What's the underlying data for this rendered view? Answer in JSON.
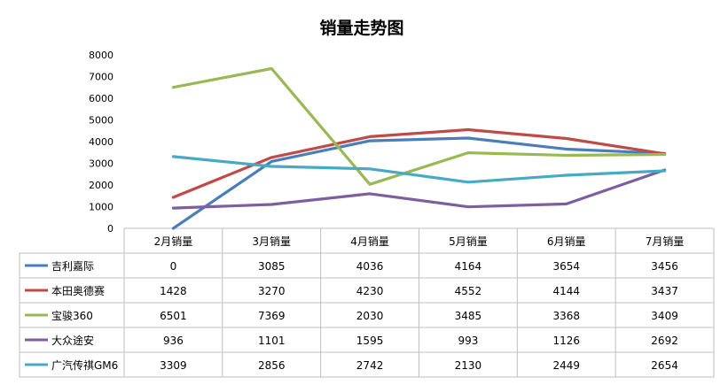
{
  "chart_data": {
    "type": "line",
    "title": "销量走势图",
    "xlabel": "",
    "ylabel": "",
    "ylim": [
      0,
      8000
    ],
    "yticks": [
      "0",
      "1000",
      "2000",
      "3000",
      "4000",
      "5000",
      "6000",
      "7000",
      "8000"
    ],
    "categories": [
      "2月销量",
      "3月销量",
      "4月销量",
      "5月销量",
      "6月销量",
      "7月销量"
    ],
    "grid": false,
    "legend": "data-table",
    "series": [
      {
        "name": "吉利嘉际",
        "color": "#4a7ebb",
        "values": [
          0,
          3085,
          4036,
          4164,
          3654,
          3456
        ]
      },
      {
        "name": "本田奥德赛",
        "color": "#be4b48",
        "values": [
          1428,
          3270,
          4230,
          4552,
          4144,
          3437
        ]
      },
      {
        "name": "宝骏360",
        "color": "#98b954",
        "values": [
          6501,
          7369,
          2030,
          3485,
          3368,
          3409
        ]
      },
      {
        "name": "大众途安",
        "color": "#7d5fa0",
        "values": [
          936,
          1101,
          1595,
          993,
          1126,
          2692
        ]
      },
      {
        "name": "广汽传祺GM6",
        "color": "#46aac5",
        "values": [
          3309,
          2856,
          2742,
          2130,
          2449,
          2654
        ]
      }
    ]
  }
}
